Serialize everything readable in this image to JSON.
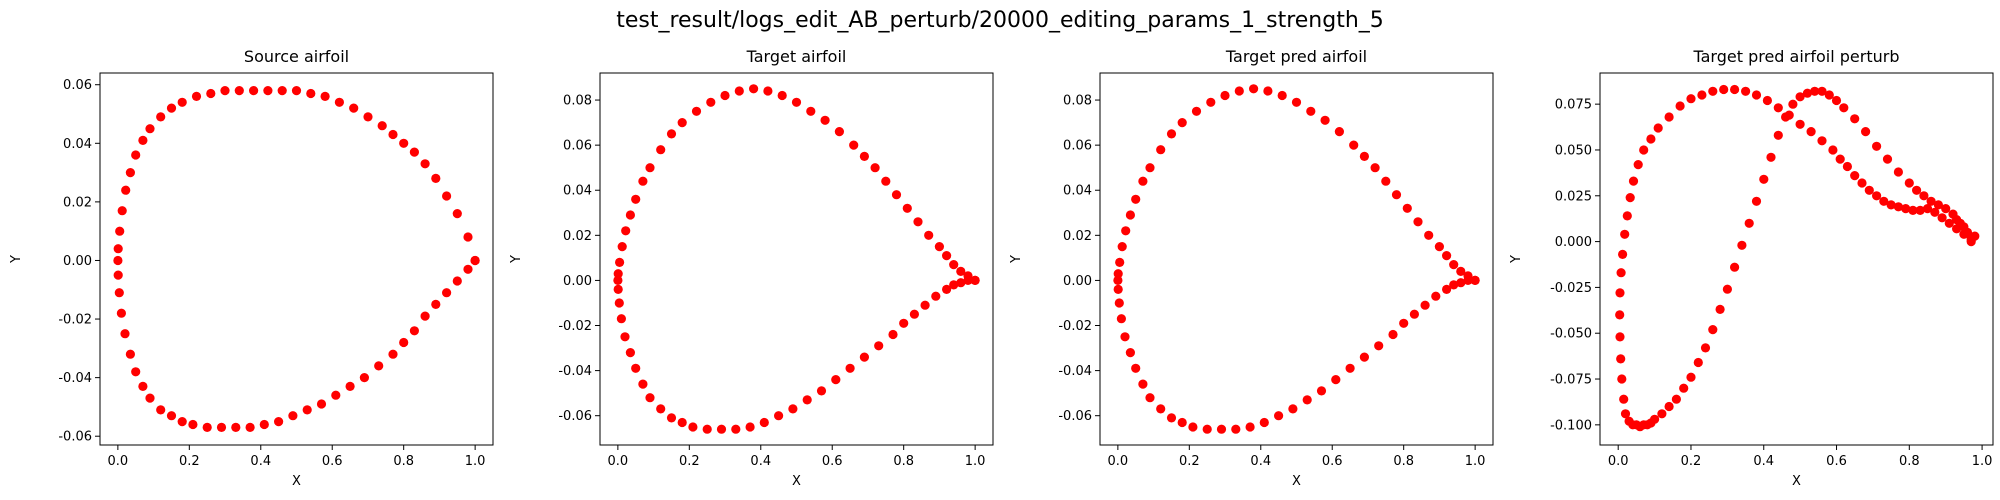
{
  "figure": {
    "suptitle": "test_result/logs_edit_AB_perturb/20000_editing_params_1_strength_5"
  },
  "chart_data": [
    {
      "type": "scatter",
      "title": "Source airfoil",
      "xlabel": "X",
      "ylabel": "Y",
      "xlim": [
        -0.05,
        1.05
      ],
      "ylim": [
        -0.063,
        0.064
      ],
      "xticks": [
        "0.0",
        "0.2",
        "0.4",
        "0.6",
        "0.8",
        "1.0"
      ],
      "yticks": [
        "-0.06",
        "-0.04",
        "-0.02",
        "0.00",
        "0.02",
        "0.04",
        "0.06"
      ],
      "color": "#ff0000",
      "series": [
        {
          "x": [
            1.0,
            0.98,
            0.95,
            0.92,
            0.89,
            0.86,
            0.83,
            0.8,
            0.77,
            0.74,
            0.7,
            0.66,
            0.62,
            0.58,
            0.54,
            0.5,
            0.46,
            0.42,
            0.38,
            0.34,
            0.3,
            0.26,
            0.22,
            0.18,
            0.15,
            0.12,
            0.09,
            0.07,
            0.05,
            0.035,
            0.022,
            0.012,
            0.005,
            0.001,
            0.0,
            0.001,
            0.004,
            0.01,
            0.02,
            0.035,
            0.05,
            0.07,
            0.09,
            0.12,
            0.15,
            0.18,
            0.21,
            0.25,
            0.29,
            0.33,
            0.37,
            0.41,
            0.45,
            0.49,
            0.53,
            0.57,
            0.61,
            0.65,
            0.69,
            0.73,
            0.77,
            0.8,
            0.83,
            0.86,
            0.89,
            0.92,
            0.95,
            0.98,
            1.0
          ],
          "y": [
            0.0,
            0.008,
            0.016,
            0.022,
            0.028,
            0.033,
            0.037,
            0.04,
            0.043,
            0.046,
            0.049,
            0.052,
            0.054,
            0.056,
            0.057,
            0.058,
            0.058,
            0.058,
            0.058,
            0.058,
            0.058,
            0.057,
            0.056,
            0.054,
            0.052,
            0.049,
            0.045,
            0.041,
            0.036,
            0.03,
            0.024,
            0.017,
            0.01,
            0.004,
            0.0,
            -0.005,
            -0.011,
            -0.018,
            -0.025,
            -0.032,
            -0.038,
            -0.043,
            -0.047,
            -0.051,
            -0.053,
            -0.055,
            -0.056,
            -0.057,
            -0.057,
            -0.057,
            -0.057,
            -0.056,
            -0.055,
            -0.053,
            -0.051,
            -0.049,
            -0.046,
            -0.043,
            -0.04,
            -0.036,
            -0.032,
            -0.028,
            -0.024,
            -0.019,
            -0.015,
            -0.011,
            -0.007,
            -0.003,
            0.0
          ]
        }
      ]
    },
    {
      "type": "scatter",
      "title": "Target airfoil",
      "xlabel": "X",
      "ylabel": "Y",
      "xlim": [
        -0.05,
        1.05
      ],
      "ylim": [
        -0.073,
        0.092
      ],
      "xticks": [
        "0.0",
        "0.2",
        "0.4",
        "0.6",
        "0.8",
        "1.0"
      ],
      "yticks": [
        "-0.06",
        "-0.04",
        "-0.02",
        "0.00",
        "0.02",
        "0.04",
        "0.06",
        "0.08"
      ],
      "color": "#ff0000",
      "series": [
        {
          "x": [
            1.0,
            0.98,
            0.96,
            0.94,
            0.92,
            0.9,
            0.87,
            0.84,
            0.81,
            0.78,
            0.75,
            0.72,
            0.69,
            0.66,
            0.62,
            0.58,
            0.54,
            0.5,
            0.46,
            0.42,
            0.38,
            0.34,
            0.3,
            0.26,
            0.22,
            0.18,
            0.15,
            0.12,
            0.09,
            0.07,
            0.05,
            0.035,
            0.022,
            0.012,
            0.005,
            0.001,
            0.0,
            0.001,
            0.004,
            0.01,
            0.02,
            0.035,
            0.05,
            0.07,
            0.09,
            0.12,
            0.15,
            0.18,
            0.21,
            0.25,
            0.29,
            0.33,
            0.37,
            0.41,
            0.45,
            0.49,
            0.53,
            0.57,
            0.61,
            0.65,
            0.69,
            0.73,
            0.77,
            0.8,
            0.83,
            0.86,
            0.89,
            0.92,
            0.94,
            0.96,
            0.98,
            1.0
          ],
          "y": [
            0.0,
            0.002,
            0.004,
            0.007,
            0.011,
            0.015,
            0.02,
            0.026,
            0.032,
            0.038,
            0.044,
            0.05,
            0.055,
            0.06,
            0.066,
            0.071,
            0.075,
            0.079,
            0.082,
            0.084,
            0.085,
            0.084,
            0.082,
            0.079,
            0.075,
            0.07,
            0.065,
            0.058,
            0.05,
            0.044,
            0.036,
            0.029,
            0.022,
            0.015,
            0.008,
            0.003,
            0.0,
            -0.004,
            -0.01,
            -0.017,
            -0.025,
            -0.032,
            -0.039,
            -0.046,
            -0.052,
            -0.057,
            -0.061,
            -0.063,
            -0.065,
            -0.066,
            -0.066,
            -0.066,
            -0.065,
            -0.063,
            -0.06,
            -0.057,
            -0.053,
            -0.049,
            -0.044,
            -0.039,
            -0.034,
            -0.029,
            -0.024,
            -0.019,
            -0.015,
            -0.011,
            -0.007,
            -0.004,
            -0.002,
            -0.001,
            0.0,
            0.0
          ]
        }
      ]
    },
    {
      "type": "scatter",
      "title": "Target pred airfoil",
      "xlabel": "X",
      "ylabel": "Y",
      "xlim": [
        -0.05,
        1.05
      ],
      "ylim": [
        -0.073,
        0.092
      ],
      "xticks": [
        "0.0",
        "0.2",
        "0.4",
        "0.6",
        "0.8",
        "1.0"
      ],
      "yticks": [
        "-0.06",
        "-0.04",
        "-0.02",
        "0.00",
        "0.02",
        "0.04",
        "0.06",
        "0.08"
      ],
      "color": "#ff0000",
      "series": [
        {
          "x": [
            1.0,
            0.98,
            0.96,
            0.94,
            0.92,
            0.9,
            0.87,
            0.84,
            0.81,
            0.78,
            0.75,
            0.72,
            0.69,
            0.66,
            0.62,
            0.58,
            0.54,
            0.5,
            0.46,
            0.42,
            0.38,
            0.34,
            0.3,
            0.26,
            0.22,
            0.18,
            0.15,
            0.12,
            0.09,
            0.07,
            0.05,
            0.035,
            0.022,
            0.012,
            0.005,
            0.001,
            0.0,
            0.001,
            0.004,
            0.01,
            0.02,
            0.035,
            0.05,
            0.07,
            0.09,
            0.12,
            0.15,
            0.18,
            0.21,
            0.25,
            0.29,
            0.33,
            0.37,
            0.41,
            0.45,
            0.49,
            0.53,
            0.57,
            0.61,
            0.65,
            0.69,
            0.73,
            0.77,
            0.8,
            0.83,
            0.86,
            0.89,
            0.92,
            0.94,
            0.96,
            0.98,
            1.0
          ],
          "y": [
            0.0,
            0.002,
            0.004,
            0.007,
            0.011,
            0.015,
            0.02,
            0.026,
            0.032,
            0.038,
            0.044,
            0.05,
            0.055,
            0.06,
            0.066,
            0.071,
            0.075,
            0.079,
            0.082,
            0.084,
            0.085,
            0.084,
            0.082,
            0.079,
            0.075,
            0.07,
            0.065,
            0.058,
            0.05,
            0.044,
            0.036,
            0.029,
            0.022,
            0.015,
            0.008,
            0.003,
            0.0,
            -0.004,
            -0.01,
            -0.017,
            -0.025,
            -0.032,
            -0.039,
            -0.046,
            -0.052,
            -0.057,
            -0.061,
            -0.063,
            -0.065,
            -0.066,
            -0.066,
            -0.066,
            -0.065,
            -0.063,
            -0.06,
            -0.057,
            -0.053,
            -0.049,
            -0.044,
            -0.039,
            -0.034,
            -0.029,
            -0.024,
            -0.019,
            -0.015,
            -0.011,
            -0.007,
            -0.004,
            -0.002,
            -0.001,
            0.0,
            0.0
          ]
        }
      ]
    },
    {
      "type": "scatter",
      "title": "Target pred airfoil perturb",
      "xlabel": "X",
      "ylabel": "Y",
      "xlim": [
        -0.05,
        1.03
      ],
      "ylim": [
        -0.111,
        0.092
      ],
      "xticks": [
        "0.0",
        "0.2",
        "0.4",
        "0.6",
        "0.8",
        "1.0"
      ],
      "yticks": [
        "-0.100",
        "-0.075",
        "-0.050",
        "-0.025",
        "0.000",
        "0.025",
        "0.050",
        "0.075"
      ],
      "color": "#ff0000",
      "series": [
        {
          "x": [
            0.97,
            0.98,
            0.96,
            0.95,
            0.97,
            0.94,
            0.93,
            0.92,
            0.9,
            0.88,
            0.86,
            0.84,
            0.82,
            0.8,
            0.77,
            0.74,
            0.71,
            0.68,
            0.65,
            0.62,
            0.6,
            0.58,
            0.56,
            0.54,
            0.52,
            0.5,
            0.48,
            0.46,
            0.44,
            0.42,
            0.4,
            0.38,
            0.36,
            0.34,
            0.32,
            0.3,
            0.28,
            0.26,
            0.24,
            0.22,
            0.2,
            0.18,
            0.16,
            0.14,
            0.12,
            0.1,
            0.09,
            0.08,
            0.07,
            0.06,
            0.05,
            0.04,
            0.03,
            0.02,
            0.015,
            0.01,
            0.007,
            0.005,
            0.004,
            0.005,
            0.008,
            0.012,
            0.018,
            0.025,
            0.033,
            0.042,
            0.055,
            0.07,
            0.09,
            0.11,
            0.14,
            0.17,
            0.2,
            0.23,
            0.26,
            0.29,
            0.32,
            0.35,
            0.38,
            0.41,
            0.44,
            0.47,
            0.5,
            0.53,
            0.56,
            0.59,
            0.61,
            0.63,
            0.65,
            0.67,
            0.69,
            0.71,
            0.73,
            0.75,
            0.77,
            0.79,
            0.81,
            0.83,
            0.85,
            0.87,
            0.89,
            0.91,
            0.93,
            0.95,
            0.97
          ],
          "y": [
            0.0,
            0.003,
            0.005,
            0.008,
            0.002,
            0.01,
            0.012,
            0.015,
            0.018,
            0.02,
            0.022,
            0.025,
            0.028,
            0.032,
            0.038,
            0.045,
            0.052,
            0.06,
            0.067,
            0.073,
            0.077,
            0.08,
            0.082,
            0.082,
            0.081,
            0.079,
            0.075,
            0.068,
            0.058,
            0.046,
            0.034,
            0.022,
            0.01,
            -0.002,
            -0.014,
            -0.026,
            -0.037,
            -0.048,
            -0.058,
            -0.066,
            -0.074,
            -0.08,
            -0.086,
            -0.09,
            -0.094,
            -0.097,
            -0.099,
            -0.1,
            -0.1,
            -0.101,
            -0.1,
            -0.1,
            -0.098,
            -0.094,
            -0.086,
            -0.075,
            -0.064,
            -0.052,
            -0.04,
            -0.028,
            -0.017,
            -0.007,
            0.004,
            0.014,
            0.024,
            0.033,
            0.042,
            0.05,
            0.056,
            0.062,
            0.068,
            0.074,
            0.078,
            0.08,
            0.082,
            0.083,
            0.083,
            0.082,
            0.08,
            0.077,
            0.073,
            0.069,
            0.064,
            0.06,
            0.055,
            0.05,
            0.045,
            0.041,
            0.036,
            0.032,
            0.028,
            0.025,
            0.022,
            0.02,
            0.019,
            0.018,
            0.017,
            0.017,
            0.018,
            0.016,
            0.013,
            0.01,
            0.007,
            0.004,
            0.001
          ]
        }
      ]
    }
  ]
}
